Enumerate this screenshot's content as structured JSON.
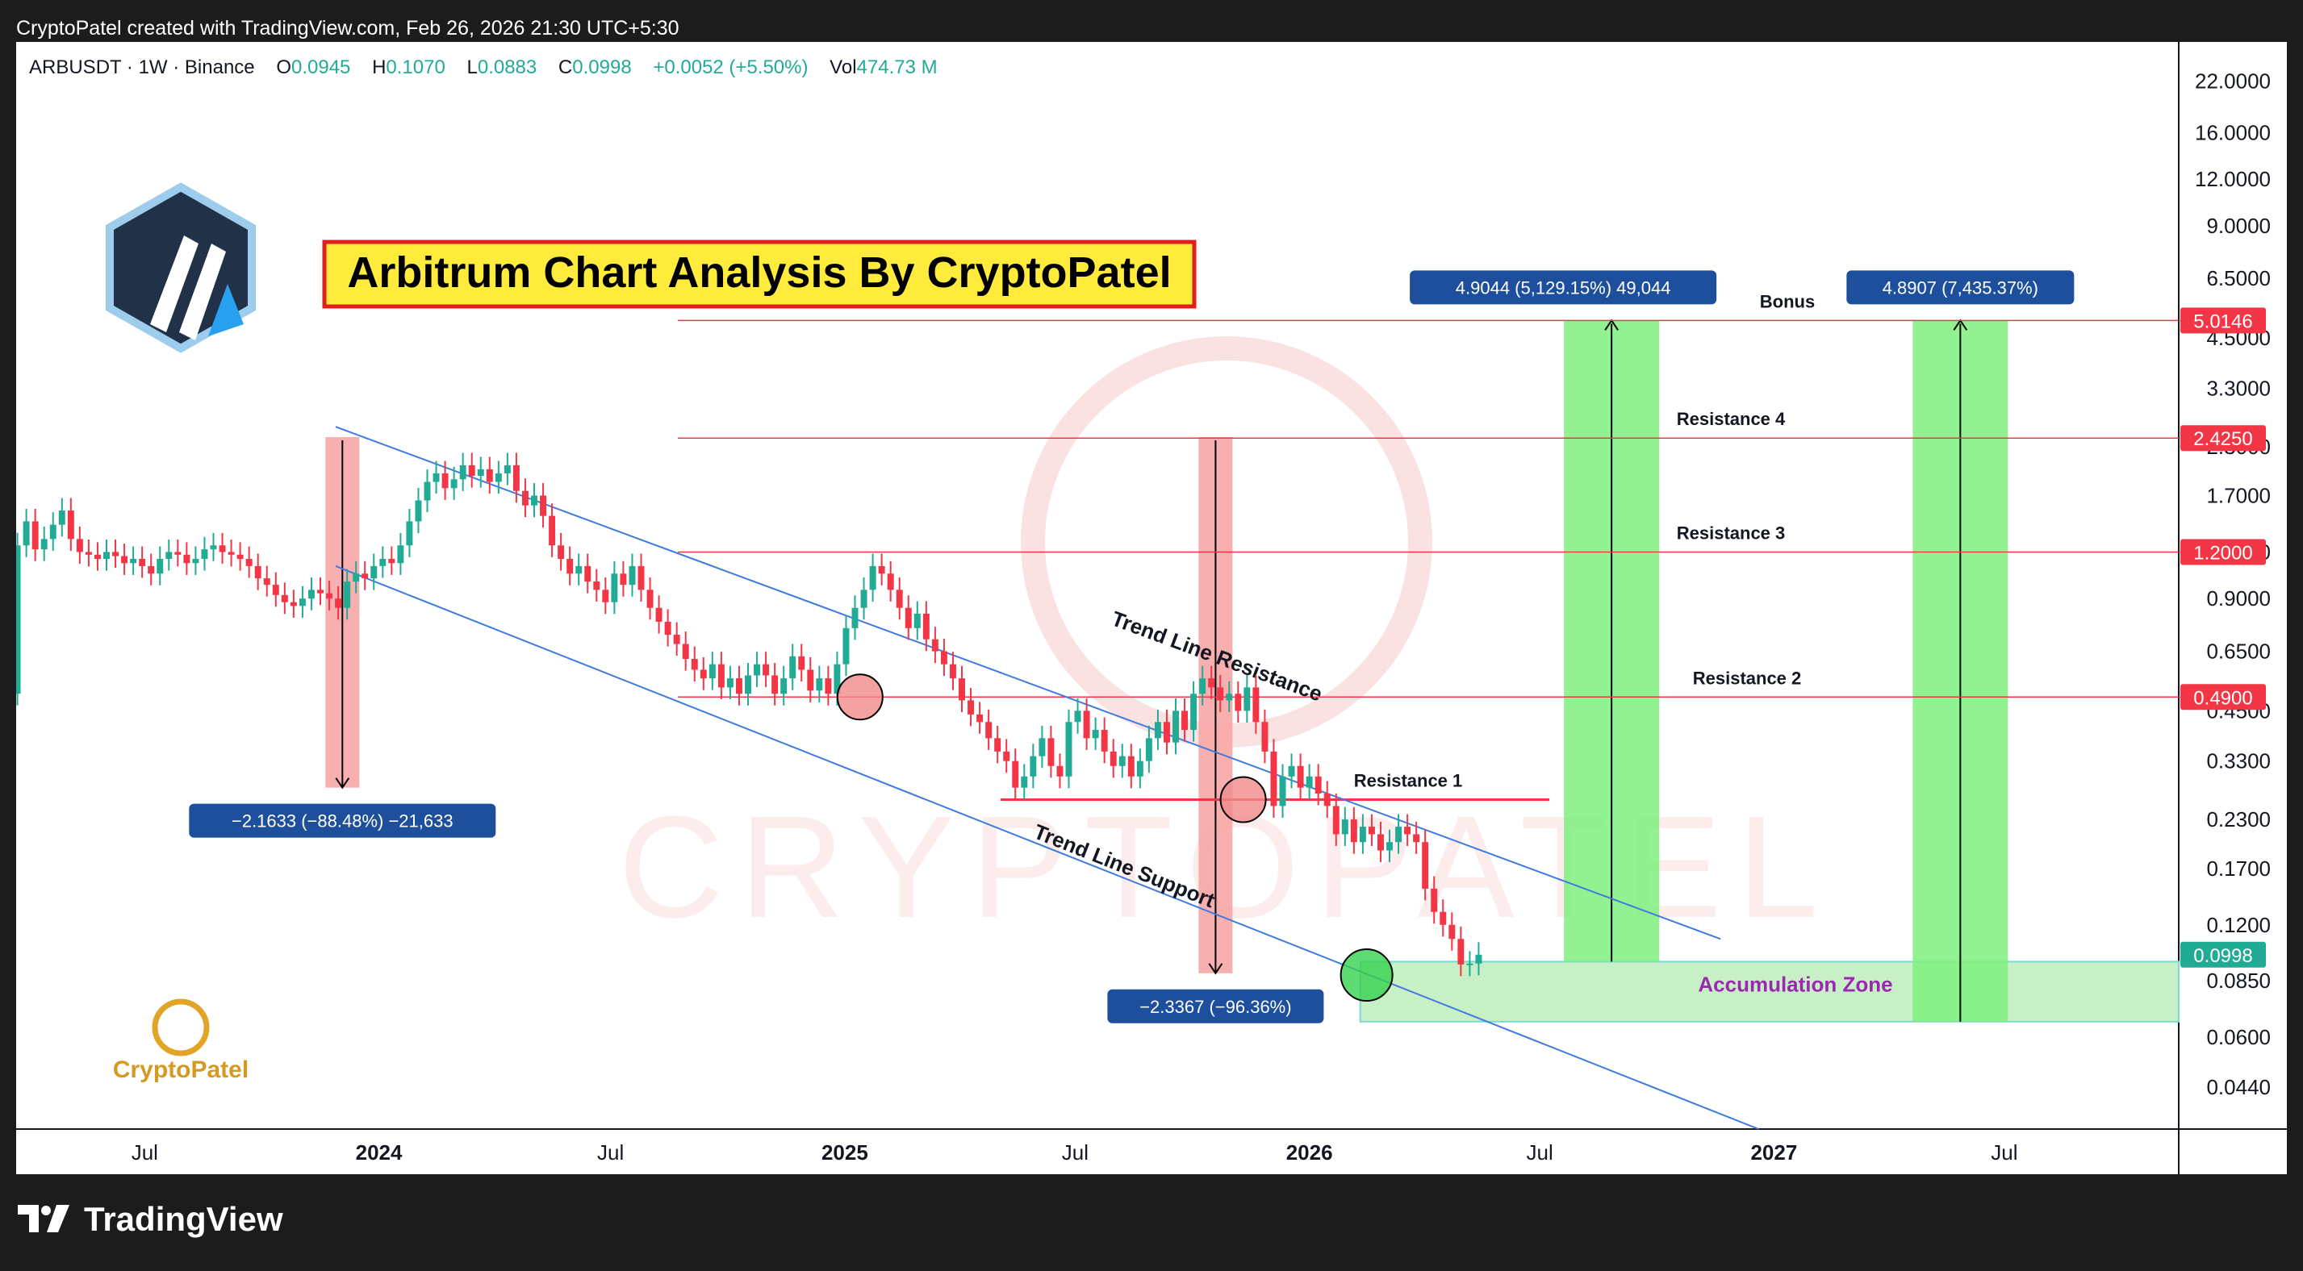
{
  "header": {
    "caption": "CryptoPatel created with TradingView.com, Feb 26, 2026 21:30 UTC+5:30"
  },
  "legend": {
    "symbol": "ARBUSDT · 1W · Binance",
    "open_label": "O",
    "open": "0.0945",
    "high_label": "H",
    "high": "0.1070",
    "low_label": "L",
    "low": "0.0883",
    "close_label": "C",
    "close": "0.0998",
    "change": "+0.0052 (+5.50%)",
    "vol_label": "Vol",
    "vol": "474.73 M"
  },
  "title_banner": "Arbitrum Chart Analysis By CryptoPatel",
  "watermark": "CRYPTOPATEL",
  "brand_logo_text": "CryptoPatel",
  "footer": {
    "brand": "TradingView"
  },
  "colors": {
    "up": "#22ab94",
    "down": "#f23645",
    "resistance": "#f23645",
    "trendline": "#3f7be0",
    "target_zone": "#7ff07f",
    "accumulation": "#c7f0c7",
    "label_box": "#1e4f9c",
    "banner_bg": "#ffeb3b",
    "banner_border": "#e01e1e"
  },
  "chart_data": {
    "type": "candlestick",
    "interval": "1W",
    "yscale": "log",
    "ylim": [
      0.034,
      28
    ],
    "xlim": [
      "2023-03-22",
      "2027-11-15"
    ],
    "y_ticks": [
      "22.0000",
      "16.0000",
      "12.0000",
      "9.0000",
      "6.5000",
      "4.5000",
      "3.3000",
      "2.3000",
      "1.7000",
      "1.2000",
      "0.9000",
      "0.6500",
      "0.4500",
      "0.3300",
      "0.2300",
      "0.1700",
      "0.1200",
      "0.0850",
      "0.0600",
      "0.0440"
    ],
    "x_ticks": [
      {
        "label": "Jul",
        "date": "2023-07-01",
        "bold": false
      },
      {
        "label": "2024",
        "date": "2024-01-01",
        "bold": true
      },
      {
        "label": "Jul",
        "date": "2024-07-01",
        "bold": false
      },
      {
        "label": "2025",
        "date": "2025-01-01",
        "bold": true
      },
      {
        "label": "Jul",
        "date": "2025-07-01",
        "bold": false
      },
      {
        "label": "2026",
        "date": "2026-01-01",
        "bold": true
      },
      {
        "label": "Jul",
        "date": "2026-07-01",
        "bold": false
      },
      {
        "label": "2027",
        "date": "2027-01-01",
        "bold": true
      },
      {
        "label": "Jul",
        "date": "2027-07-01",
        "bold": false
      }
    ],
    "series_start": "2023-03-23",
    "closes": [
      1.25,
      1.45,
      1.22,
      1.3,
      1.42,
      1.55,
      1.3,
      1.2,
      1.18,
      1.15,
      1.2,
      1.17,
      1.12,
      1.15,
      1.1,
      1.05,
      1.15,
      1.2,
      1.18,
      1.12,
      1.15,
      1.22,
      1.25,
      1.2,
      1.18,
      1.15,
      1.1,
      1.02,
      0.98,
      0.92,
      0.88,
      0.86,
      0.9,
      0.95,
      0.93,
      0.9,
      0.85,
      1.0,
      1.05,
      1.02,
      1.1,
      1.15,
      1.12,
      1.25,
      1.45,
      1.65,
      1.85,
      1.95,
      1.78,
      1.88,
      2.05,
      1.92,
      2.0,
      1.85,
      1.95,
      2.05,
      1.75,
      1.6,
      1.7,
      1.5,
      1.25,
      1.15,
      1.05,
      1.1,
      1.0,
      0.95,
      0.88,
      1.05,
      0.98,
      1.1,
      0.95,
      0.85,
      0.78,
      0.72,
      0.68,
      0.62,
      0.58,
      0.55,
      0.6,
      0.52,
      0.55,
      0.5,
      0.56,
      0.6,
      0.56,
      0.5,
      0.55,
      0.63,
      0.58,
      0.51,
      0.55,
      0.5,
      0.6,
      0.75,
      0.85,
      0.95,
      1.1,
      1.05,
      0.95,
      0.85,
      0.75,
      0.82,
      0.7,
      0.65,
      0.6,
      0.55,
      0.48,
      0.44,
      0.42,
      0.38,
      0.35,
      0.33,
      0.28,
      0.3,
      0.34,
      0.38,
      0.32,
      0.3,
      0.42,
      0.45,
      0.38,
      0.4,
      0.35,
      0.32,
      0.34,
      0.3,
      0.33,
      0.38,
      0.42,
      0.37,
      0.45,
      0.4,
      0.5,
      0.55,
      0.52,
      0.48,
      0.5,
      0.45,
      0.52,
      0.42,
      0.35,
      0.25,
      0.3,
      0.32,
      0.28,
      0.3,
      0.27,
      0.25,
      0.21,
      0.23,
      0.2,
      0.22,
      0.21,
      0.19,
      0.2,
      0.22,
      0.21,
      0.2,
      0.15,
      0.13,
      0.12,
      0.11,
      0.094,
      0.0945,
      0.0998
    ],
    "opens": [
      0.5
    ],
    "horizontal_levels": [
      {
        "label": "Bonus",
        "value": 5.0146,
        "price_tag": "5.0146"
      },
      {
        "label": "Resistance 4",
        "value": 2.425,
        "price_tag": "2.4250"
      },
      {
        "label": "Resistance 3",
        "value": 1.2,
        "price_tag": "1.2000"
      },
      {
        "label": "Resistance 2",
        "value": 0.49,
        "price_tag": "0.4900"
      },
      {
        "label": "Resistance 1",
        "value": 0.26
      }
    ],
    "last_price_tag": "0.0998",
    "trendlines": [
      {
        "label": "Trend Line Resistance",
        "from": [
          "2023-11-28",
          2.6
        ],
        "to": [
          "2026-11-20",
          0.11
        ]
      },
      {
        "label": "Trend Line Support",
        "from": [
          "2023-11-28",
          1.1
        ],
        "to": [
          "2026-12-20",
          0.034
        ]
      }
    ],
    "measures": [
      {
        "label": "−2.1633 (−88.48%) −21,633",
        "from_date": "2023-11-20",
        "top": 2.44,
        "bottom": 0.28
      },
      {
        "label": "−2.3367 (−96.36%)",
        "from_date": "2025-10-06",
        "top": 2.44,
        "bottom": 0.089
      },
      {
        "label": "4.9044 (5,129.15%) 49,044",
        "from_date": "2026-07-20",
        "top": 5.0146,
        "bottom": 0.0956
      },
      {
        "label": "4.8907 (7,435.37%)",
        "from_date": "2027-04-20",
        "top": 5.0146,
        "bottom": 0.066
      }
    ],
    "accumulation_zone": {
      "label": "Accumulation Zone",
      "from_date": "2026-02-10",
      "top": 0.0956,
      "bottom": 0.066
    },
    "circled_points": [
      {
        "date": "2025-01-13",
        "value": 0.49,
        "color": "red"
      },
      {
        "date": "2025-11-10",
        "value": 0.26,
        "color": "red"
      },
      {
        "date": "2026-02-15",
        "value": 0.088,
        "color": "green"
      }
    ]
  }
}
